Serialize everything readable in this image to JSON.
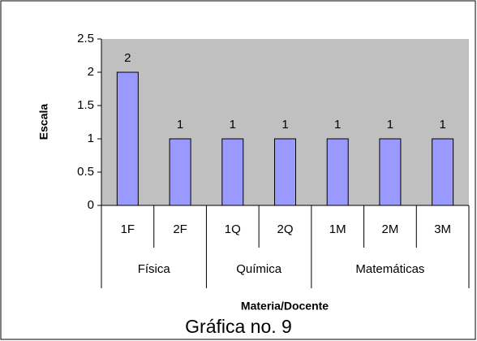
{
  "chart_data": {
    "type": "bar",
    "title": "Gráfica no. 9",
    "x_label": "Materia/Docente",
    "y_label": "Escala",
    "groups": [
      {
        "label": "Física",
        "categories": [
          "1F",
          "2F"
        ]
      },
      {
        "label": "Química",
        "categories": [
          "1Q",
          "2Q"
        ]
      },
      {
        "label": "Matemáticas",
        "categories": [
          "1M",
          "2M",
          "3M"
        ]
      }
    ],
    "values": [
      2,
      1,
      1,
      1,
      1,
      1,
      1
    ],
    "color": "#9999ff",
    "ylim": [
      0,
      2.5
    ],
    "yticks": [
      0,
      0.5,
      1,
      1.5,
      2,
      2.5
    ],
    "grid": false
  }
}
